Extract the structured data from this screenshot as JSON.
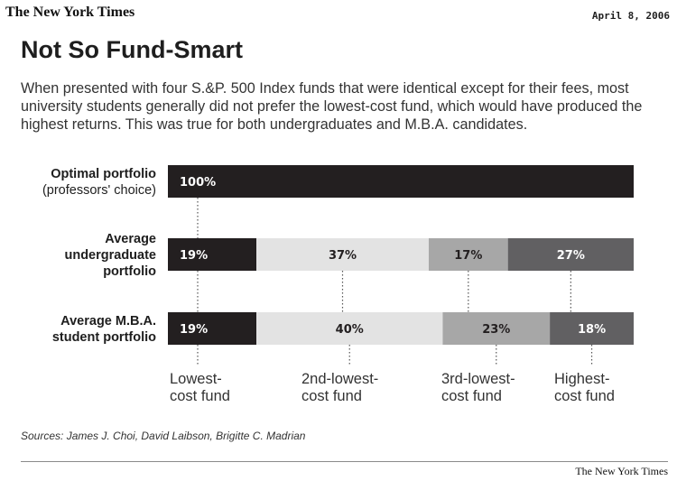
{
  "header": {
    "masthead": "The New York Times",
    "date": "April 8, 2006"
  },
  "chart_data": {
    "type": "bar",
    "stacked": true,
    "orientation": "horizontal",
    "title": "Not So Fund-Smart",
    "subtitle": "When presented with four S.&P. 500 Index funds that were identical except for their fees, most university students generally did not prefer the lowest-cost fund, which would have produced the highest returns. This was true for both undergraduates and M.B.A. candidates.",
    "categories": [
      [
        "Optimal portfolio",
        "(professors' choice)"
      ],
      [
        "Average",
        "undergraduate",
        "portfolio"
      ],
      [
        "Average M.B.A.",
        "student portfolio"
      ]
    ],
    "series": [
      {
        "name": [
          "Lowest-",
          "cost fund"
        ],
        "color": "#231f20",
        "label_color": "#ffffff",
        "values": [
          100,
          19,
          19
        ],
        "labels": [
          "100%",
          "19%",
          "19%"
        ]
      },
      {
        "name": [
          "2nd-lowest-",
          "cost fund"
        ],
        "color": "#e3e3e3",
        "label_color": "#231f20",
        "values": [
          0,
          37,
          40
        ],
        "labels": [
          "",
          "37%",
          "40%"
        ]
      },
      {
        "name": [
          "3rd-lowest-",
          "cost fund"
        ],
        "color": "#a7a7a7",
        "label_color": "#231f20",
        "values": [
          0,
          17,
          23
        ],
        "labels": [
          "",
          "17%",
          "23%"
        ]
      },
      {
        "name": [
          "Highest-",
          "cost fund"
        ],
        "color": "#616062",
        "label_color": "#ffffff",
        "values": [
          0,
          27,
          18
        ],
        "labels": [
          "",
          "27%",
          "18%"
        ]
      }
    ],
    "xlim": [
      0,
      100
    ],
    "source": "Sources: James J. Choi, David Laibson, Brigitte C. Madrian"
  },
  "footer": {
    "credit": "The New York Times"
  }
}
